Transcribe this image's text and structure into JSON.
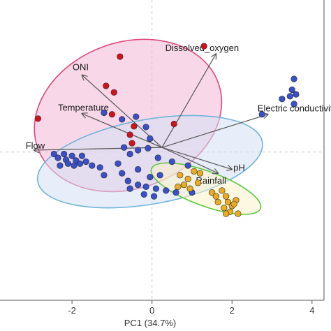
{
  "chart_data": {
    "type": "scatter",
    "title": "",
    "xlabel": "PC1 (34.7%)",
    "ylabel": "",
    "xlim": [
      -3.8,
      4.3
    ],
    "ylim": [
      -3.85,
      3.95
    ],
    "xticks": [
      -2,
      0,
      2,
      4
    ],
    "grid": false,
    "zero_lines": true,
    "colors": {
      "red": "#d0121b",
      "blue": "#3a4fc8",
      "orange": "#e9ac20",
      "ellipse_red": "#e0497a",
      "ellipse_blue": "#6fb3d9",
      "ellipse_green": "#5ac73a",
      "arrow": "#555555"
    },
    "ellipses": [
      {
        "name": "",
        "color": "#e0497a",
        "fill": "#f3b8d6",
        "center": [
          -0.6,
          0.95
        ],
        "rx": 2.4,
        "ry": 1.9,
        "angle_deg": 20
      },
      {
        "name": "",
        "color": "#6fb3d9",
        "fill": "#d4e0f4",
        "center": [
          -0.05,
          -0.25
        ],
        "rx": 2.85,
        "ry": 1.1,
        "angle_deg": 10
      },
      {
        "name": "",
        "color": "#5ac73a",
        "fill": "#fbf2c8",
        "center": [
          1.35,
          -0.95
        ],
        "rx": 1.45,
        "ry": 0.45,
        "angle_deg": -20
      }
    ],
    "loadings": [
      {
        "label": "ONI",
        "x": -1.75,
        "y": 2.0
      },
      {
        "label": "Dissolved_oxygen",
        "x": 1.6,
        "y": 2.55
      },
      {
        "label": "Temperature",
        "x": -1.75,
        "y": 1.0
      },
      {
        "label": "Electric conductivity",
        "x": 2.9,
        "y": 0.98
      },
      {
        "label": "Flow",
        "x": -2.95,
        "y": 0.05
      },
      {
        "label": "pH",
        "x": 2.0,
        "y": -0.45
      },
      {
        "label": "Rainfall",
        "x": 1.65,
        "y": -0.55
      }
    ],
    "series": [
      {
        "name": "",
        "color": "#d0121b",
        "points": [
          [
            1.3,
            2.75
          ],
          [
            -0.8,
            2.48
          ],
          [
            -1.15,
            1.72
          ],
          [
            -0.95,
            1.55
          ],
          [
            -2.85,
            0.87
          ],
          [
            -1.0,
            0.98
          ],
          [
            -0.45,
            0.67
          ],
          [
            0.55,
            0.73
          ],
          [
            -0.55,
            0.45
          ],
          [
            -0.5,
            0.23
          ]
        ]
      },
      {
        "name": "",
        "color": "#3a4fc8",
        "points": [
          [
            3.55,
            1.9
          ],
          [
            3.5,
            1.62
          ],
          [
            3.6,
            1.5
          ],
          [
            3.45,
            1.45
          ],
          [
            3.55,
            1.25
          ],
          [
            3.25,
            1.38
          ],
          [
            2.75,
            0.98
          ],
          [
            -1.2,
            1.02
          ],
          [
            -0.75,
            0.85
          ],
          [
            -0.4,
            0.92
          ],
          [
            -0.15,
            0.65
          ],
          [
            -0.05,
            0.35
          ],
          [
            -0.1,
            0.1
          ],
          [
            -0.35,
            0.05
          ],
          [
            -0.55,
            -0.05
          ],
          [
            -0.7,
            0.12
          ],
          [
            0.15,
            -0.15
          ],
          [
            0.5,
            -0.25
          ],
          [
            0.9,
            -0.35
          ],
          [
            -2.45,
            -0.05
          ],
          [
            -2.35,
            -0.15
          ],
          [
            -2.2,
            -0.05
          ],
          [
            -2.15,
            -0.2
          ],
          [
            -2.0,
            -0.1
          ],
          [
            -1.9,
            -0.22
          ],
          [
            -2.1,
            -0.3
          ],
          [
            -1.95,
            -0.35
          ],
          [
            -1.8,
            -0.3
          ],
          [
            -1.75,
            -0.1
          ],
          [
            -1.65,
            -0.25
          ],
          [
            -2.3,
            -0.35
          ],
          [
            -1.5,
            -0.35
          ],
          [
            -1.3,
            -0.4
          ],
          [
            -0.85,
            -0.3
          ],
          [
            -0.75,
            -0.55
          ],
          [
            -0.6,
            -0.75
          ],
          [
            -0.55,
            -0.95
          ],
          [
            -0.35,
            -0.85
          ],
          [
            -0.15,
            -0.9
          ],
          [
            -0.05,
            -0.65
          ],
          [
            0.1,
            -0.95
          ],
          [
            0.35,
            -1.0
          ],
          [
            0.05,
            -1.15
          ],
          [
            -0.2,
            -1.1
          ],
          [
            0.6,
            -1.05
          ],
          [
            1.0,
            -1.05
          ],
          [
            0.2,
            -0.6
          ],
          [
            -0.35,
            -0.45
          ],
          [
            -1.2,
            -0.6
          ]
        ]
      },
      {
        "name": "",
        "color": "#e9ac20",
        "points": [
          [
            0.7,
            -0.6
          ],
          [
            0.9,
            -0.7
          ],
          [
            1.05,
            -0.5
          ],
          [
            1.2,
            -0.55
          ],
          [
            0.8,
            -0.85
          ],
          [
            0.95,
            -0.95
          ],
          [
            1.15,
            -0.8
          ],
          [
            0.65,
            -0.9
          ],
          [
            1.5,
            -1.05
          ],
          [
            1.6,
            -1.15
          ],
          [
            1.75,
            -1.0
          ],
          [
            1.85,
            -1.15
          ],
          [
            1.9,
            -1.3
          ],
          [
            2.0,
            -1.4
          ],
          [
            1.8,
            -1.45
          ],
          [
            1.65,
            -1.3
          ],
          [
            2.1,
            -1.25
          ],
          [
            1.95,
            -1.55
          ],
          [
            2.15,
            -1.6
          ],
          [
            2.05,
            -1.35
          ],
          [
            1.85,
            -1.6
          ]
        ]
      }
    ]
  }
}
